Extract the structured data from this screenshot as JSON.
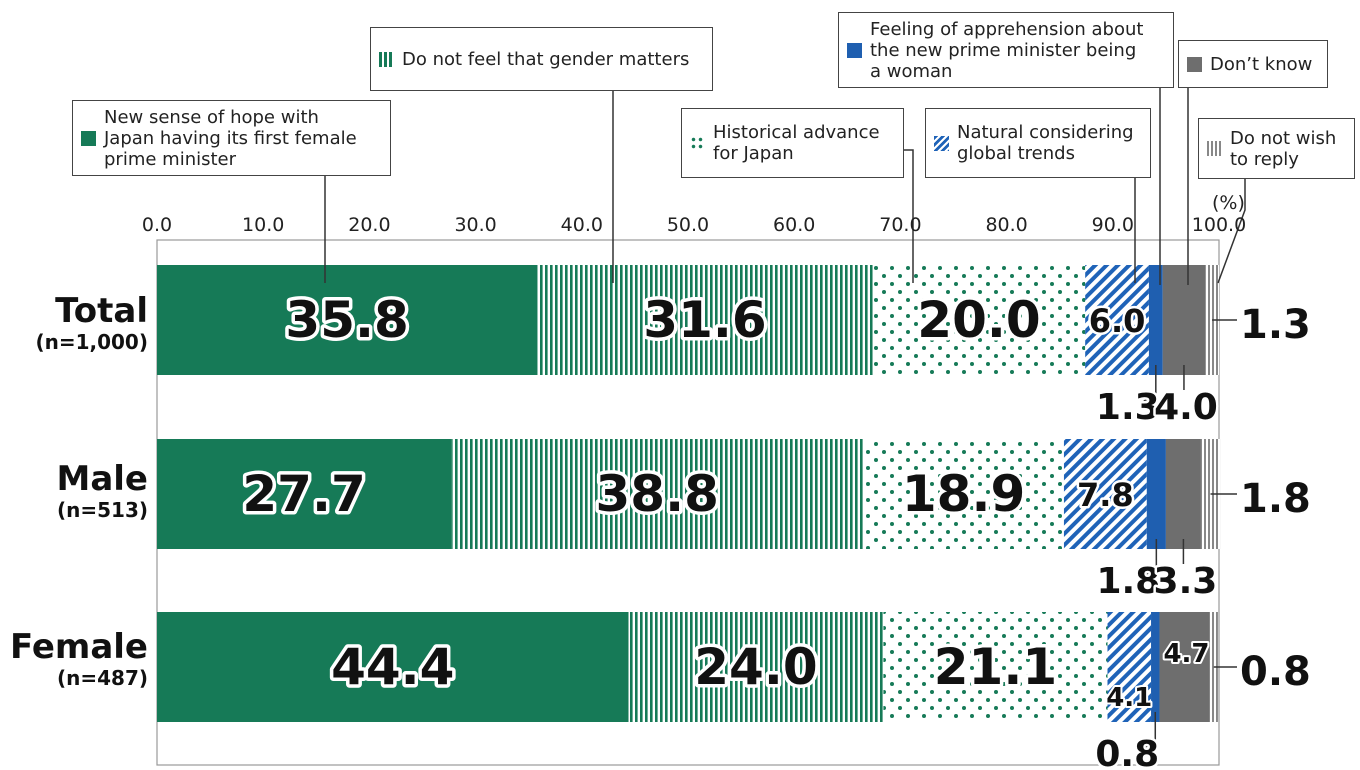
{
  "chart_data": {
    "type": "bar",
    "orientation": "horizontal",
    "stacked": true,
    "unit_label": "(%)",
    "xlim": [
      0,
      100
    ],
    "ticks": [
      "0.0",
      "10.0",
      "20.0",
      "30.0",
      "40.0",
      "50.0",
      "60.0",
      "70.0",
      "80.0",
      "90.0",
      "100.0"
    ],
    "categories": [
      {
        "name": "Total",
        "n": "(n=1,000)"
      },
      {
        "name": "Male",
        "n": "(n=513)"
      },
      {
        "name": "Female",
        "n": "(n=487)"
      }
    ],
    "series": [
      {
        "name": "New sense of hope with Japan having its first female prime minister",
        "legend_text": "New  sense  of  hope  with\nJapan having its first female\nprime minister",
        "color": "#167a57",
        "pattern": "solid",
        "values": [
          35.8,
          27.7,
          44.4
        ]
      },
      {
        "name": "Do not feel that gender matters",
        "legend_text": "Do not feel that gender matters",
        "color": "#167a57",
        "pattern": "vertical-stripes",
        "values": [
          31.6,
          38.8,
          24.0
        ]
      },
      {
        "name": "Historical advance for Japan",
        "legend_text": "Historical advance\n for Japan",
        "color": "#167a57",
        "pattern": "dots",
        "values": [
          20.0,
          18.9,
          21.1
        ]
      },
      {
        "name": "Natural considering global trends",
        "legend_text": "Natural  considering\nglobal trends",
        "color": "#1f63b8",
        "pattern": "diagonal-stripes",
        "values": [
          6.0,
          7.8,
          4.1
        ]
      },
      {
        "name": "Feeling of apprehension about the new prime minister being a woman",
        "legend_text": "Feeling of apprehension about\nthe new prime minister being\na woman",
        "color": "#1f5fb0",
        "pattern": "solid",
        "values": [
          1.3,
          1.8,
          0.8
        ]
      },
      {
        "name": "Don’t know",
        "legend_text": "Don’t know",
        "color": "#6e6e6e",
        "pattern": "solid",
        "values": [
          4.0,
          3.3,
          4.7
        ]
      },
      {
        "name": "Do not wish to reply",
        "legend_text": "Do not wish\nto reply",
        "color": "#8a8a8a",
        "pattern": "vertical-stripes",
        "values": [
          1.3,
          1.8,
          0.8
        ]
      }
    ],
    "data_labels": [
      [
        "35.8",
        "31.6",
        "20.0",
        "6.0",
        "1.3",
        "4.0",
        "1.3"
      ],
      [
        "27.7",
        "38.8",
        "18.9",
        "7.8",
        "1.8",
        "3.3",
        "1.8"
      ],
      [
        "44.4",
        "24.0",
        "21.1",
        "4.1",
        "0.8",
        "4.7",
        "0.8"
      ]
    ],
    "grid": false,
    "legend": "callout-boxes-top"
  }
}
